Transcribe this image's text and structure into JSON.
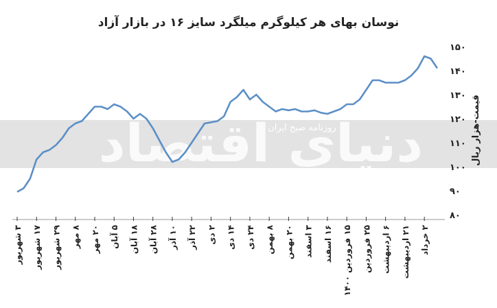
{
  "chart_data": {
    "type": "line",
    "title": "نوسان بهای هر کیلوگرم میلگرد سایز ۱۶ در بازار آزاد",
    "y_label": "قیمت-هزار ریال",
    "watermark": "دنیای اقتصاد",
    "watermark_sub": "روزنامه صبح ایران",
    "categories": [
      "۳ شهریور",
      null,
      null,
      "۱۷ شهریور",
      null,
      null,
      "۲۹ شهریور",
      null,
      null,
      "۸ مهر",
      null,
      null,
      "۲۰ مهر",
      null,
      null,
      "۵ آبان",
      null,
      null,
      "۱۸ آبان",
      null,
      null,
      "۲۸ آبان",
      null,
      null,
      "۱۰ آذر",
      null,
      null,
      "۲۲ آذر",
      null,
      null,
      "۲ دی",
      null,
      null,
      "۱۴ دی",
      null,
      null,
      "۲۴ دی",
      null,
      null,
      "۸ بهمن",
      null,
      null,
      "۲۰ بهمن",
      null,
      null,
      "۳ اسفند",
      null,
      null,
      "۱۶ اسفند",
      null,
      null,
      "۱۵ فروردین ۱۴۰۰",
      null,
      null,
      "۲۵ فروردین",
      null,
      null,
      "۶ اردیبهشت",
      null,
      null,
      "۲۱ اردیبهشت",
      null,
      null,
      "۲ خرداد",
      null,
      null
    ],
    "values": [
      89.5,
      91,
      95,
      103,
      106,
      107,
      109,
      112,
      116,
      118,
      119,
      122,
      125,
      125,
      124,
      126,
      125,
      123,
      120,
      122,
      120,
      116,
      111,
      106,
      102,
      103,
      106,
      110,
      114,
      118,
      118.5,
      119,
      121,
      127,
      129,
      132,
      128,
      130,
      127,
      125,
      123,
      124,
      123.5,
      124,
      123,
      123,
      123.5,
      122.5,
      122,
      123,
      124,
      126,
      126,
      128,
      132,
      136,
      136,
      135,
      135,
      135,
      136,
      138,
      141,
      146,
      145,
      141
    ],
    "color": "#5b8fc7",
    "ylim": [
      80,
      150
    ],
    "yticks": [
      {
        "value": 80,
        "label": "۸۰"
      },
      {
        "value": 90,
        "label": "۹۰"
      },
      {
        "value": 100,
        "label": "۱۰۰"
      },
      {
        "value": 110,
        "label": "۱۱۰"
      },
      {
        "value": 120,
        "label": "۱۲۰"
      },
      {
        "value": 130,
        "label": "۱۳۰"
      },
      {
        "value": 140,
        "label": "۱۴۰"
      },
      {
        "value": 150,
        "label": "۱۵۰"
      }
    ]
  }
}
